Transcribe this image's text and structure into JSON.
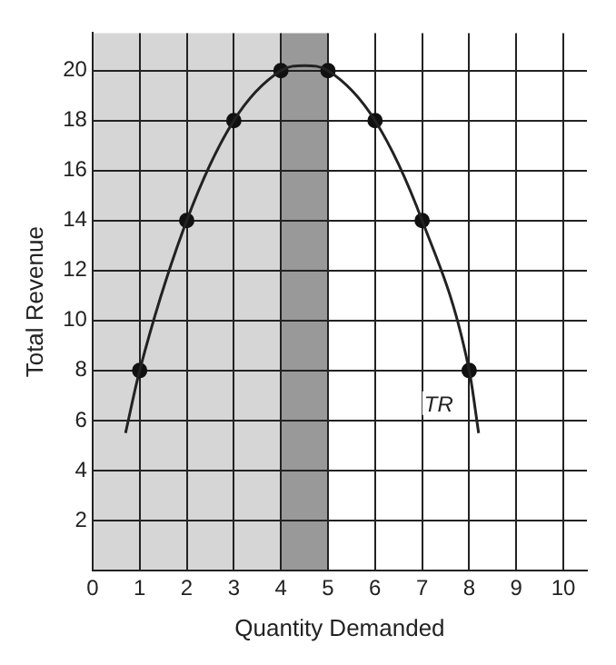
{
  "chart_data": {
    "type": "line",
    "xlabel": "Quantity Demanded",
    "ylabel": "Total Revenue",
    "xlim": [
      0,
      10.5
    ],
    "ylim": [
      0,
      21.5
    ],
    "xticks": [
      0,
      1,
      2,
      3,
      4,
      5,
      6,
      7,
      8,
      9,
      10
    ],
    "yticks": [
      2,
      4,
      6,
      8,
      10,
      12,
      14,
      16,
      18,
      20
    ],
    "grid": true,
    "legend": false,
    "bands": [
      {
        "axis": "x",
        "from": 0,
        "to": 4,
        "color": "#d6d6d6"
      },
      {
        "axis": "x",
        "from": 4,
        "to": 5,
        "color": "#999999"
      }
    ],
    "series": [
      {
        "name": "TR",
        "color": "#222222",
        "marker": "none",
        "x": [
          0.7,
          1,
          2,
          3,
          4,
          4.5,
          5,
          6,
          7,
          8,
          8.2
        ],
        "values": [
          5.5,
          8,
          14,
          18,
          20,
          20.2,
          20,
          18,
          14,
          8,
          5.5
        ]
      },
      {
        "type": "scatter",
        "color": "#111111",
        "marker": "circle",
        "x": [
          1,
          2,
          3,
          4,
          5,
          6,
          7,
          8
        ],
        "values": [
          8,
          14,
          18,
          20,
          20,
          18,
          14,
          8
        ]
      }
    ]
  }
}
